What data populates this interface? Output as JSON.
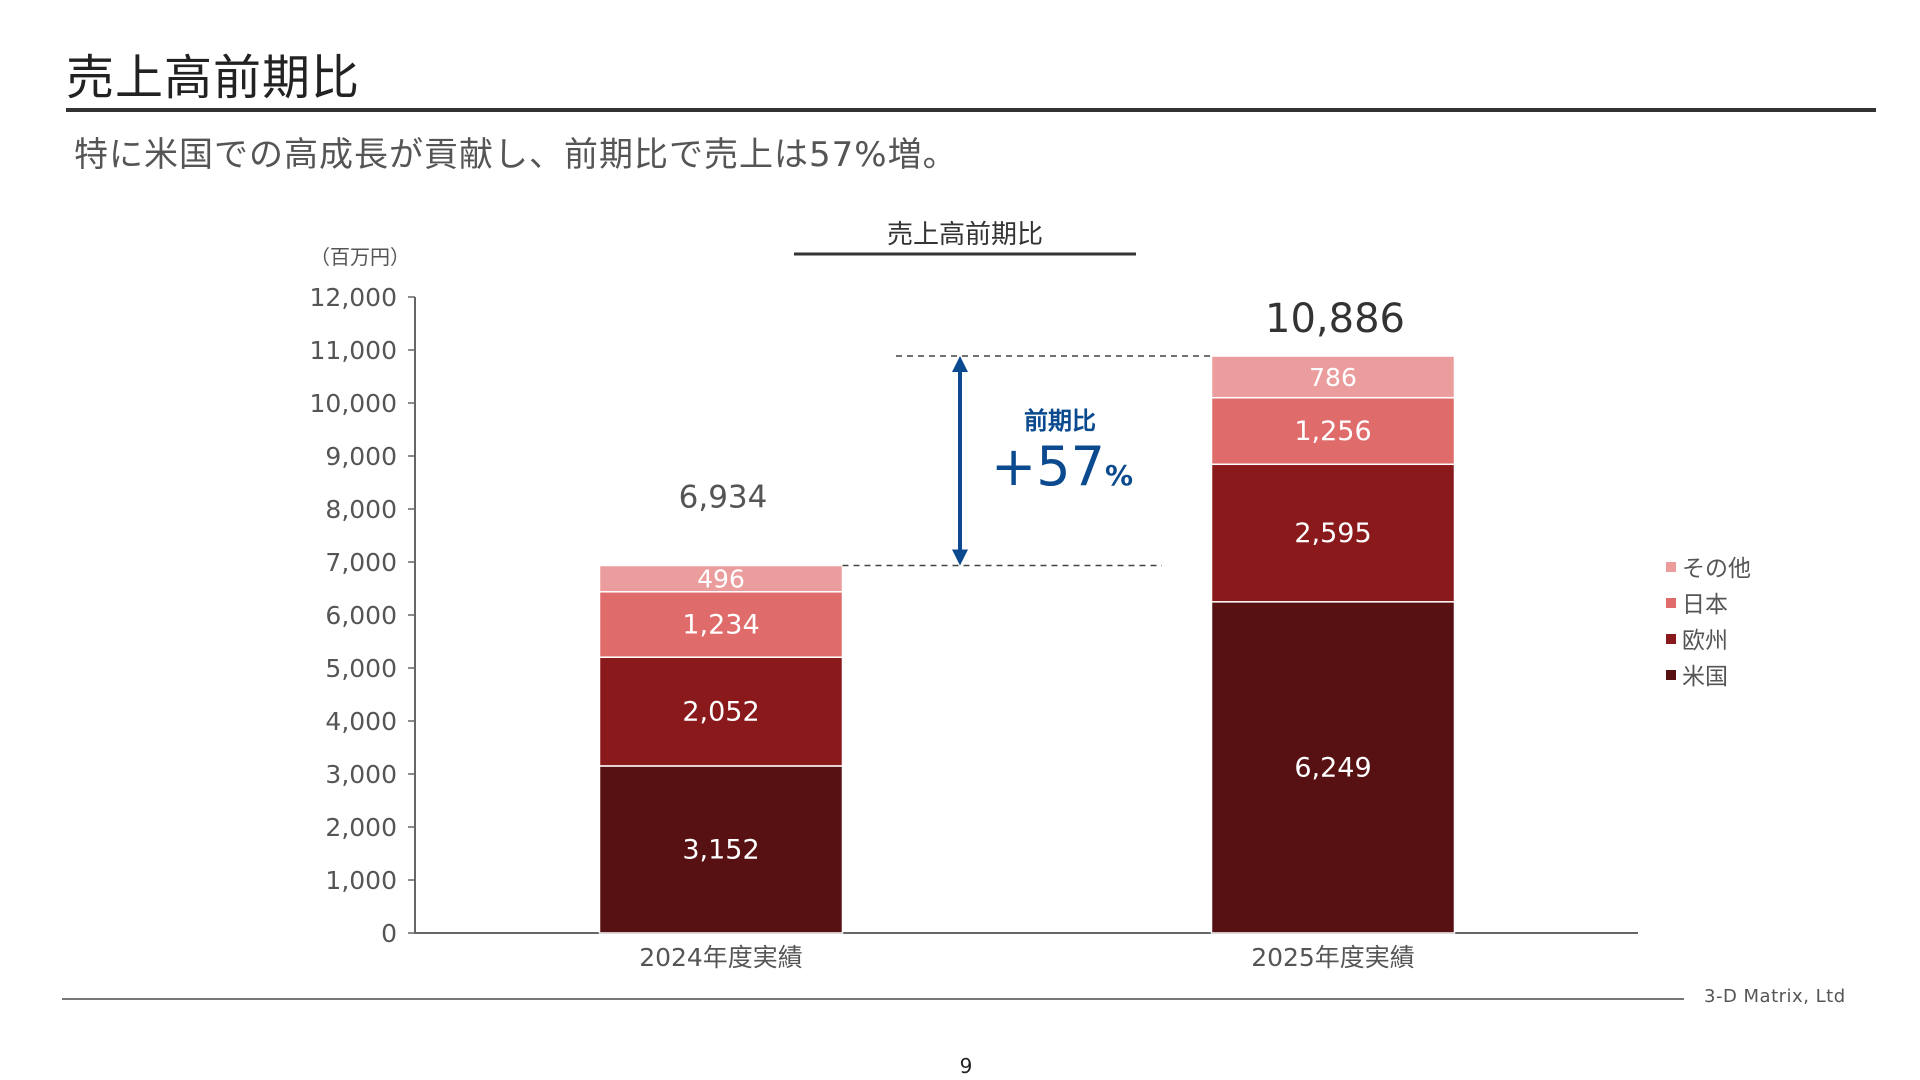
{
  "page": {
    "title": "売上高前期比",
    "subtitle": "特に米国での高成長が貢献し、前期比で売上は57%増。",
    "company": "3-D Matrix, Ltd",
    "page_number": "9"
  },
  "growth_callout": {
    "label": "前期比",
    "value": "+57",
    "unit": "%",
    "color": "#0b4a8f"
  },
  "chart_data": {
    "type": "bar",
    "stacked": true,
    "title": "売上高前期比",
    "unit_label": "（百万円）",
    "xlabel": "",
    "ylabel": "",
    "ylim": [
      0,
      12000
    ],
    "y_ticks": [
      0,
      1000,
      2000,
      3000,
      4000,
      5000,
      6000,
      7000,
      8000,
      9000,
      10000,
      11000,
      12000
    ],
    "y_tick_labels": [
      "0",
      "1,000",
      "2,000",
      "3,000",
      "4,000",
      "5,000",
      "6,000",
      "7,000",
      "8,000",
      "9,000",
      "10,000",
      "11,000",
      "12,000"
    ],
    "categories": [
      "2024年度実績",
      "2025年度実績"
    ],
    "series": [
      {
        "name": "米国",
        "values": [
          3152,
          6249
        ],
        "labels": [
          "3,152",
          "6,249"
        ],
        "color": "#571112"
      },
      {
        "name": "欧州",
        "values": [
          2052,
          2595
        ],
        "labels": [
          "2,052",
          "2,595"
        ],
        "color": "#8a191b"
      },
      {
        "name": "日本",
        "values": [
          1234,
          1256
        ],
        "labels": [
          "1,234",
          "1,256"
        ],
        "color": "#e06b6b"
      },
      {
        "name": "その他",
        "values": [
          496,
          786
        ],
        "labels": [
          "496",
          "786"
        ],
        "color": "#eb9d9d"
      }
    ],
    "totals": [
      6934,
      10886
    ],
    "total_labels": [
      "6,934",
      "10,886"
    ],
    "legend_position": "right",
    "grid": false
  }
}
